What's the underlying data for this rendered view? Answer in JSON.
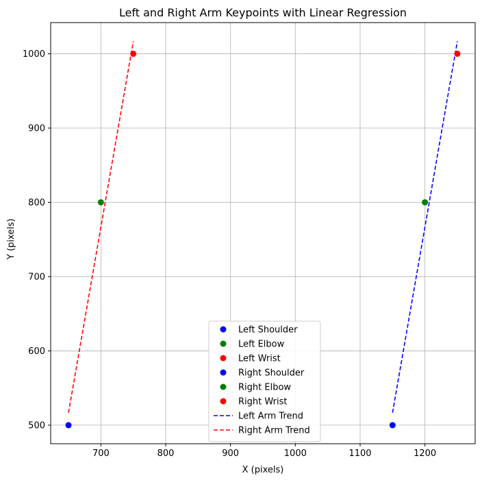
{
  "chart_data": {
    "type": "scatter",
    "title": "Left and Right Arm Keypoints with Linear Regression",
    "xlabel": "X (pixels)",
    "ylabel": "Y (pixels)",
    "xlim": [
      622.5,
      1277.5
    ],
    "ylim": [
      475,
      1042
    ],
    "x_ticks": [
      700,
      800,
      900,
      1000,
      1100,
      1200
    ],
    "y_ticks": [
      500,
      600,
      700,
      800,
      900,
      1000
    ],
    "grid": true,
    "legend_position": "lower center",
    "colors": {
      "blue": "#0000ff",
      "green": "#008000",
      "red": "#ff0000"
    },
    "series": [
      {
        "name": "Left Shoulder",
        "kind": "scatter",
        "color": "#0000ff",
        "points": [
          [
            1150,
            500
          ]
        ]
      },
      {
        "name": "Left Elbow",
        "kind": "scatter",
        "color": "#008000",
        "points": [
          [
            1200,
            800
          ]
        ]
      },
      {
        "name": "Left Wrist",
        "kind": "scatter",
        "color": "#ff0000",
        "points": [
          [
            1250,
            1000
          ]
        ]
      },
      {
        "name": "Right Shoulder",
        "kind": "scatter",
        "color": "#0000ff",
        "points": [
          [
            650,
            500
          ]
        ]
      },
      {
        "name": "Right Elbow",
        "kind": "scatter",
        "color": "#008000",
        "points": [
          [
            700,
            800
          ]
        ]
      },
      {
        "name": "Right Wrist",
        "kind": "scatter",
        "color": "#ff0000",
        "points": [
          [
            750,
            1000
          ]
        ]
      },
      {
        "name": "Left Arm Trend",
        "kind": "line",
        "style": "dashed",
        "color": "#0000ff",
        "points": [
          [
            1150,
            516.7
          ],
          [
            1250,
            1016.7
          ]
        ]
      },
      {
        "name": "Right Arm Trend",
        "kind": "line",
        "style": "dashed",
        "color": "#ff0000",
        "points": [
          [
            650,
            516.7
          ],
          [
            750,
            1016.7
          ]
        ]
      }
    ]
  }
}
